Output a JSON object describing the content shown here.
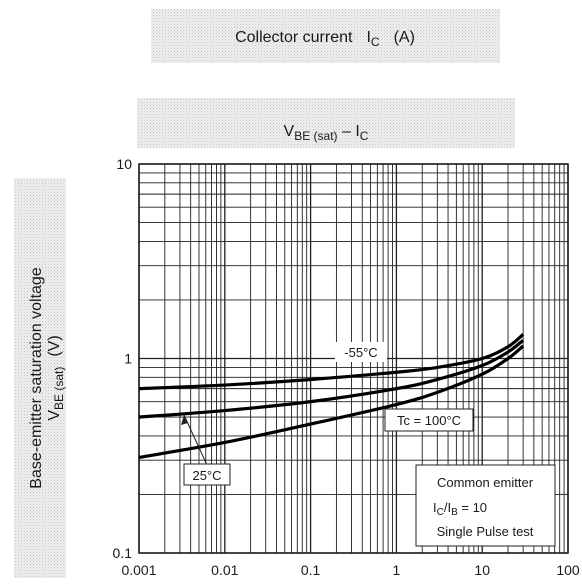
{
  "chart_data": {
    "type": "line",
    "xscale": "log",
    "yscale": "log",
    "xlim": [
      0.001,
      100
    ],
    "ylim": [
      0.1,
      10
    ],
    "grid": true,
    "x_tick_labels": [
      "0.001",
      "0.01",
      "0.1",
      "1",
      "10",
      "100"
    ],
    "x_ticks": [
      0.001,
      0.01,
      0.1,
      1,
      10,
      100
    ],
    "y_tick_labels": [
      "0.1",
      "1",
      "10"
    ],
    "y_ticks": [
      0.1,
      1,
      10
    ],
    "xlabel": {
      "main": "Collector current",
      "sym": "I",
      "sub": "C",
      "unit": "(A)"
    },
    "title": {
      "sym": "V",
      "sub": "BE (sat)",
      "mid": " – I",
      "sub2": "C"
    },
    "ylabel": {
      "line1": "Base-emitter saturation voltage",
      "sym": "V",
      "sub": "BE (sat)",
      "unit": "(V)"
    },
    "series": [
      {
        "name": "-55°C",
        "x": [
          0.001,
          0.01,
          0.1,
          1,
          3,
          10,
          20,
          30
        ],
        "y": [
          0.7,
          0.73,
          0.78,
          0.85,
          0.9,
          1.0,
          1.15,
          1.33
        ]
      },
      {
        "name": "25°C",
        "x": [
          0.001,
          0.01,
          0.1,
          1,
          3,
          10,
          20,
          30
        ],
        "y": [
          0.5,
          0.54,
          0.6,
          0.7,
          0.78,
          0.92,
          1.08,
          1.24
        ]
      },
      {
        "name": "Tc = 100°C",
        "x": [
          0.001,
          0.01,
          0.1,
          1,
          3,
          10,
          20,
          30
        ],
        "y": [
          0.31,
          0.37,
          0.46,
          0.58,
          0.67,
          0.83,
          1.0,
          1.16
        ]
      }
    ],
    "annotations": {
      "curve_minus55": "-55°C",
      "curve_25": "25°C",
      "curve_100": "Tc = 100°C"
    },
    "legend": {
      "line1": "Common emitter",
      "line2_sym": "I",
      "line2_sub": "C",
      "line2_mid": "/I",
      "line2_sub2": "B",
      "line2_val": " = 10",
      "line3": "Single Pulse test"
    }
  }
}
